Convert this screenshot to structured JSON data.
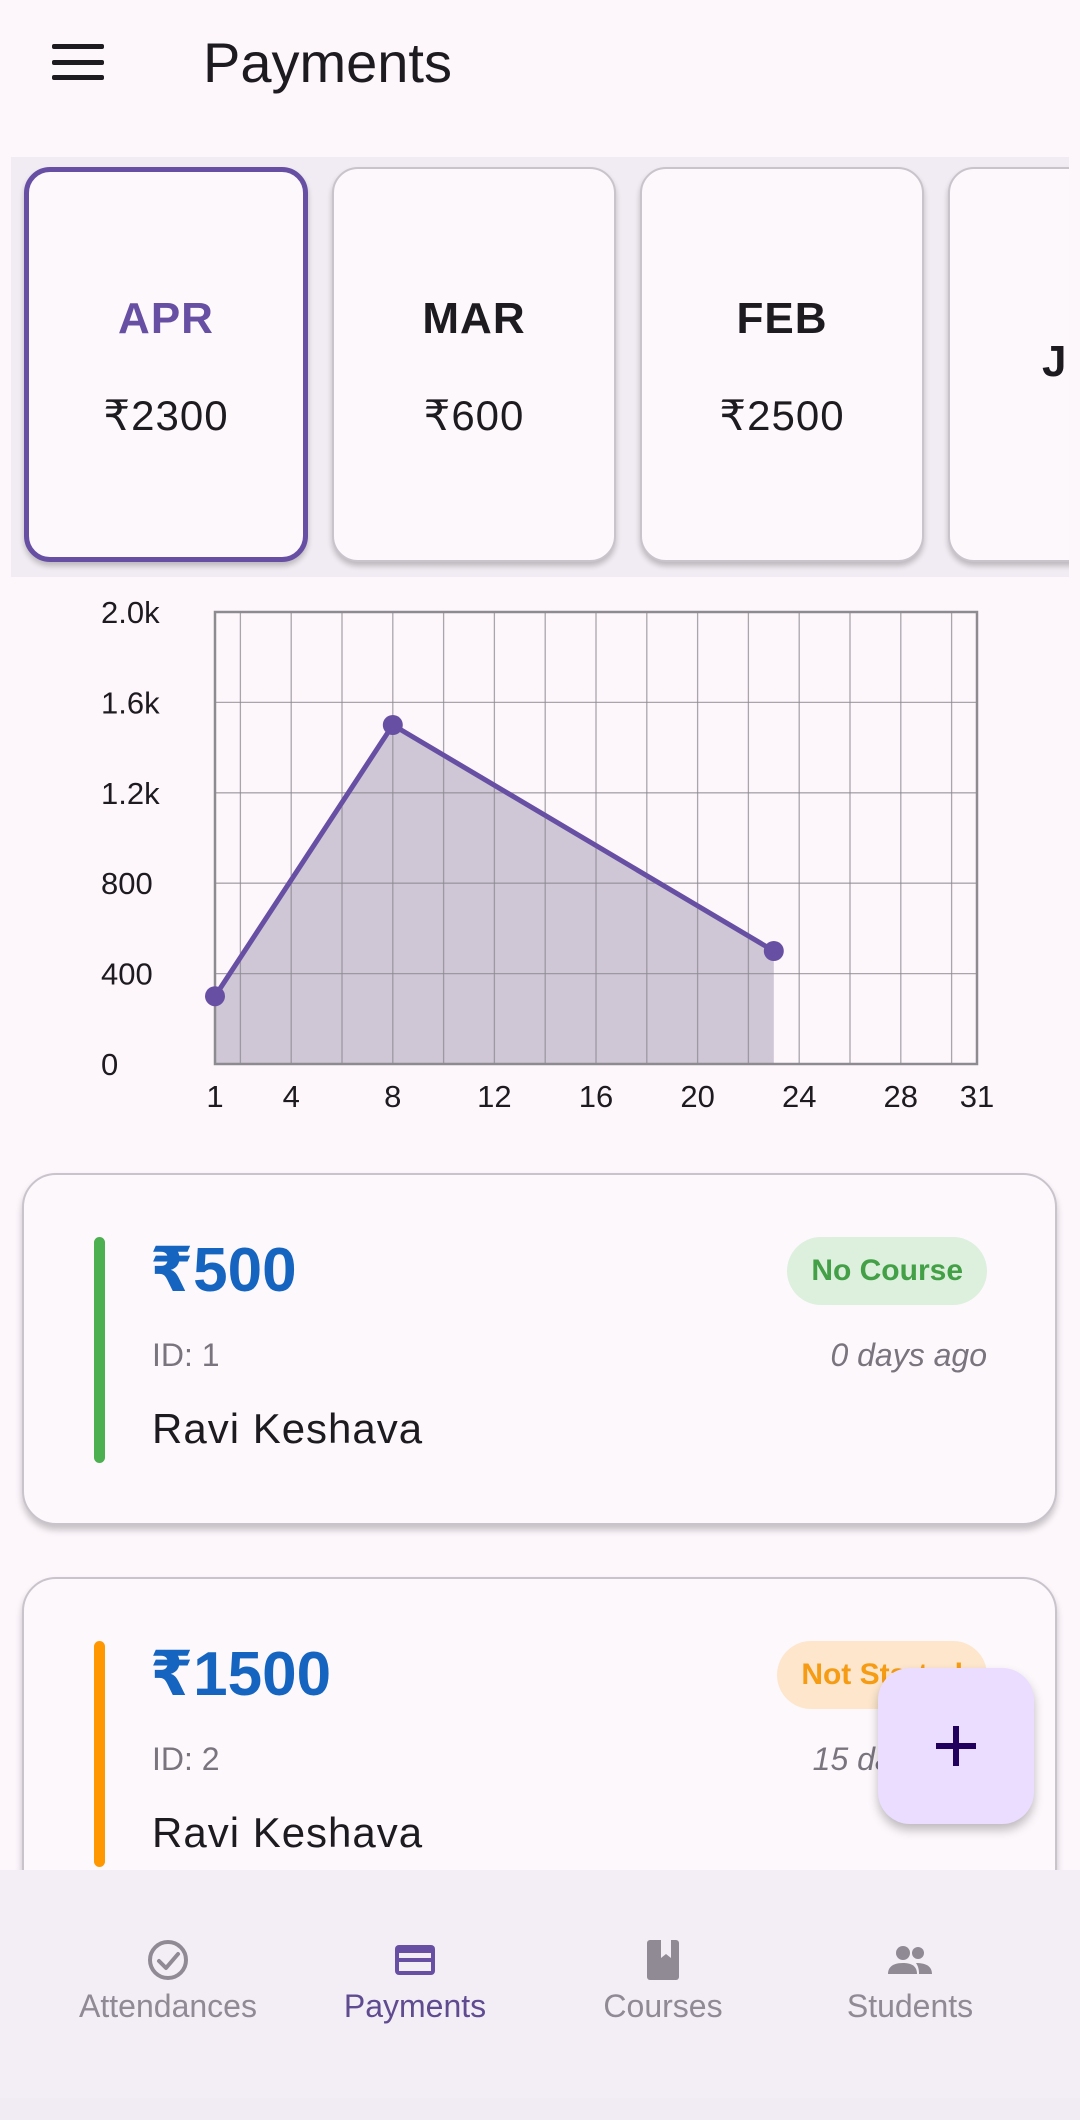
{
  "header": {
    "title": "Payments",
    "menu_icon": "hamburger-menu-icon"
  },
  "months": [
    {
      "name": "APR",
      "amount": "₹2300",
      "selected": true
    },
    {
      "name": "MAR",
      "amount": "₹600",
      "selected": false
    },
    {
      "name": "FEB",
      "amount": "₹2500",
      "selected": false
    },
    {
      "name": "J",
      "amount": "",
      "selected": false
    }
  ],
  "chart_data": {
    "type": "area",
    "x": [
      1,
      8,
      23
    ],
    "y": [
      300,
      1500,
      500
    ],
    "xticks": [
      "1",
      "4",
      "8",
      "12",
      "16",
      "20",
      "24",
      "28",
      "31"
    ],
    "yticks": [
      "0",
      "400",
      "800",
      "1.2k",
      "1.6k",
      "2.0k"
    ],
    "xlim": [
      1,
      31
    ],
    "ylim": [
      0,
      2000
    ],
    "grid": true,
    "line_color": "#6750a4",
    "fill_color": "#cfc6d6"
  },
  "payments": [
    {
      "amount": "₹500",
      "id": "ID: 1",
      "name": "Ravi Keshava",
      "time": "0 days ago",
      "badge": "No Course",
      "status_color": "#4caf50"
    },
    {
      "amount": "₹1500",
      "id": "ID: 2",
      "name": "Ravi Keshava",
      "time": "15 days ago",
      "badge": "Not Started",
      "status_color": "#ff9800"
    }
  ],
  "fab": {
    "icon": "plus-icon"
  },
  "nav": [
    {
      "label": "Attendances",
      "icon": "check-circle-icon",
      "active": false
    },
    {
      "label": "Payments",
      "icon": "credit-card-icon",
      "active": true
    },
    {
      "label": "Courses",
      "icon": "book-icon",
      "active": false
    },
    {
      "label": "Students",
      "icon": "people-icon",
      "active": false
    }
  ],
  "colors": {
    "accent": "#6750a4",
    "amount": "#1565c0",
    "background": "#fdf7fc"
  }
}
